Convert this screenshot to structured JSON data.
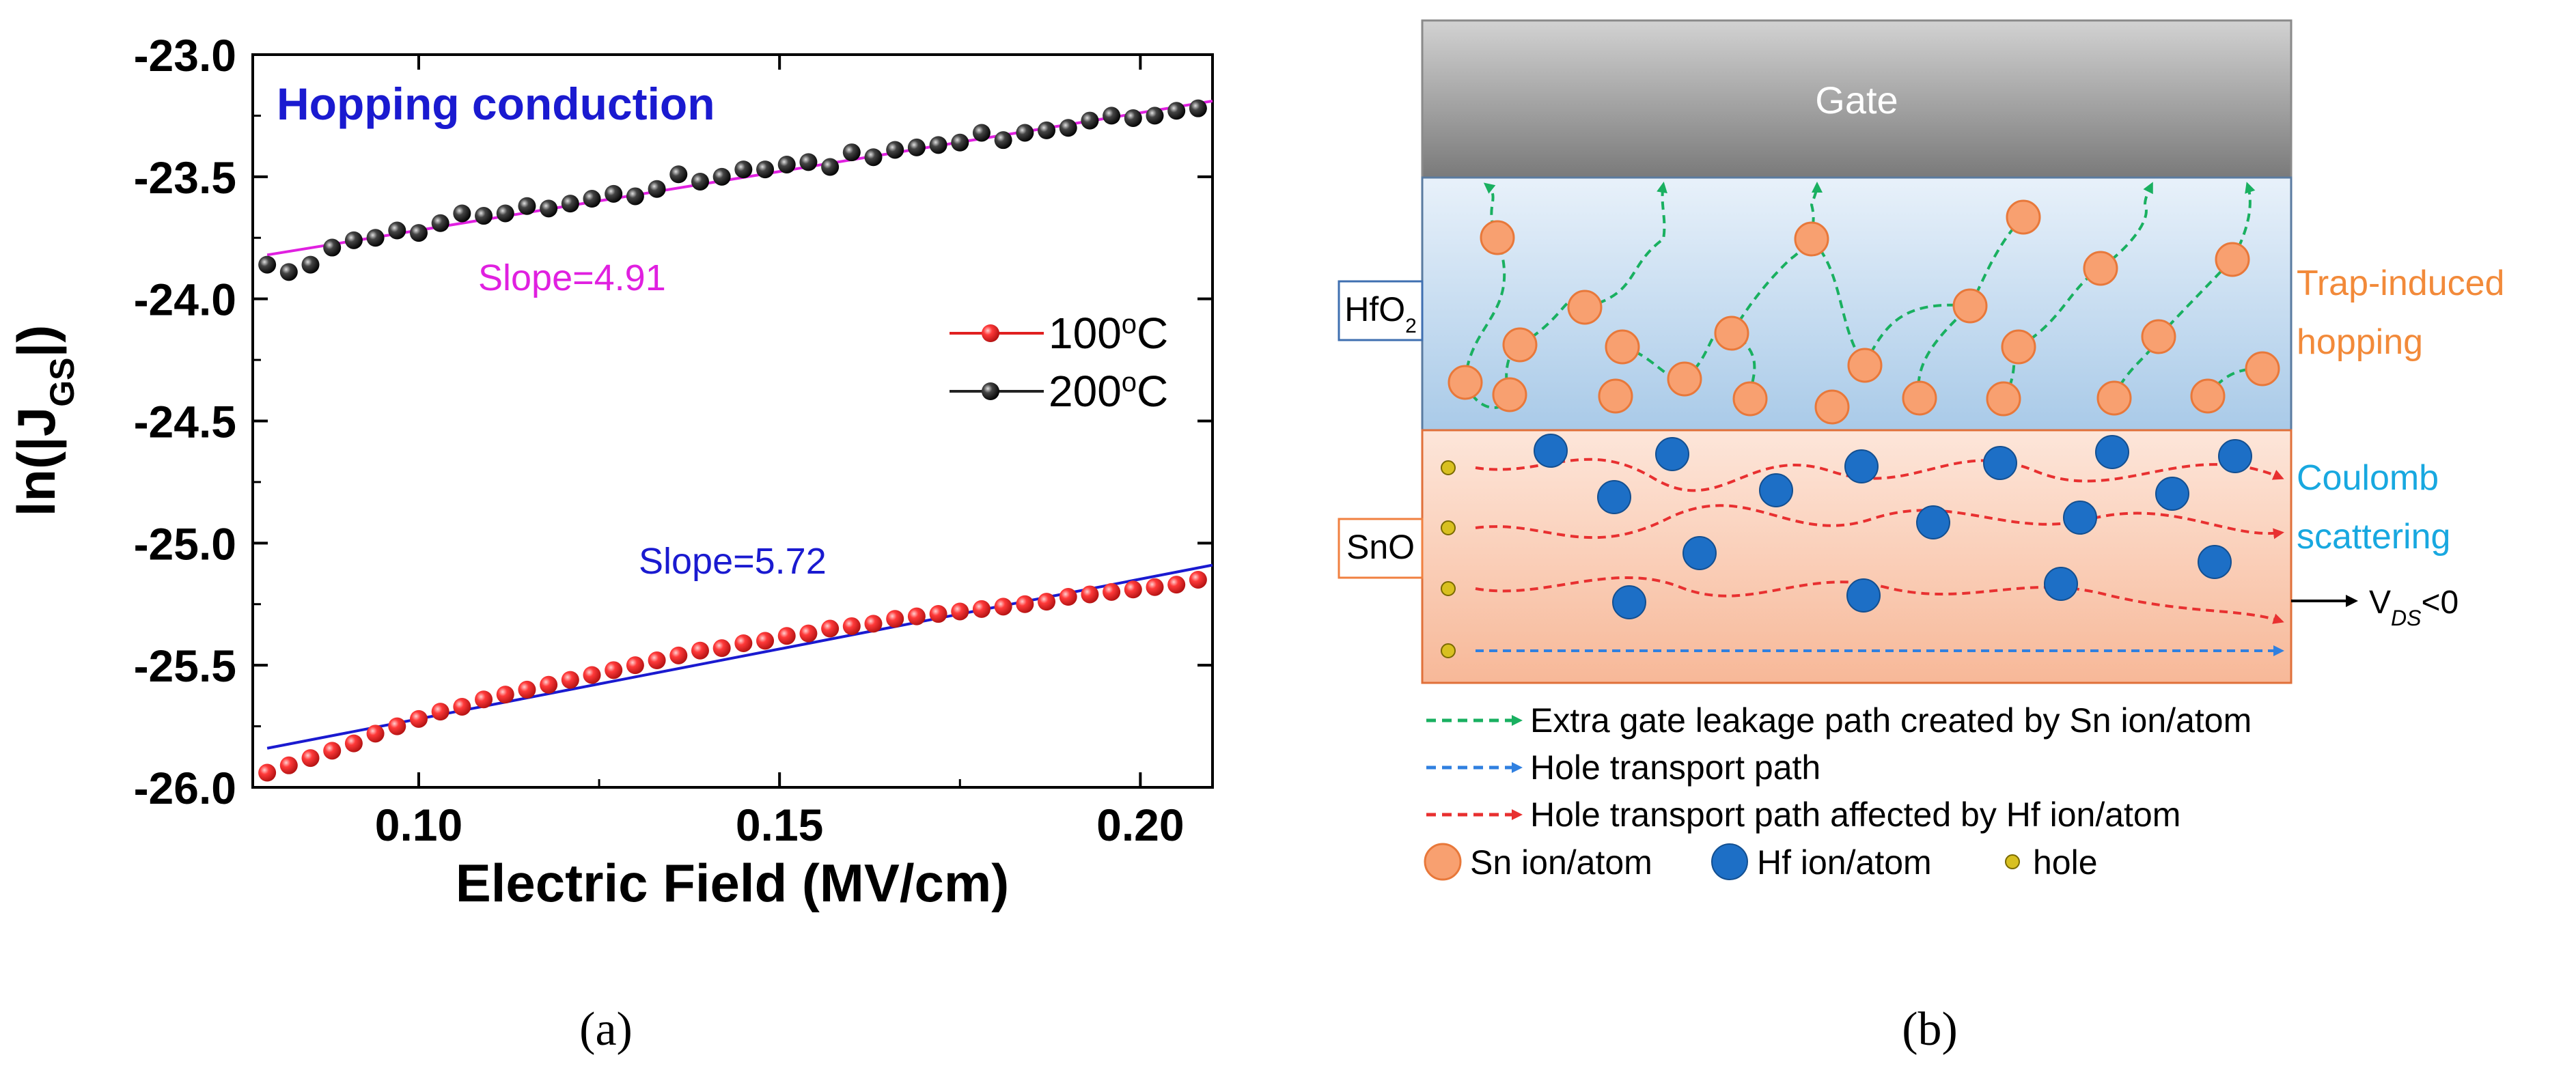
{
  "chart_data": [
    {
      "type": "scatter",
      "title": "Hopping conduction",
      "xlabel": "Electric Field (MV/cm)",
      "ylabel": "ln(|J",
      "ylabel_sub": "GS",
      "ylabel_end": "|)",
      "xlim": [
        0.077,
        0.21
      ],
      "ylim": [
        -26.0,
        -23.0
      ],
      "xticks": [
        0.1,
        0.15,
        0.2
      ],
      "xtick_labels": [
        "0.10",
        "0.15",
        "0.20"
      ],
      "yticks": [
        -23.0,
        -23.5,
        -24.0,
        -24.5,
        -25.0,
        -25.5,
        -26.0
      ],
      "ytick_labels": [
        "-23.0",
        "-23.5",
        "-24.0",
        "-24.5",
        "-25.0",
        "-25.5",
        "-26.0"
      ],
      "series": [
        {
          "name": "100°C",
          "legend_label": "100",
          "legend_sup": "o",
          "legend_unit": "C",
          "marker_color": "#e02020",
          "x": [
            0.079,
            0.082,
            0.085,
            0.088,
            0.091,
            0.094,
            0.097,
            0.1,
            0.103,
            0.106,
            0.109,
            0.112,
            0.115,
            0.118,
            0.121,
            0.124,
            0.127,
            0.13,
            0.133,
            0.136,
            0.139,
            0.142,
            0.145,
            0.148,
            0.151,
            0.154,
            0.157,
            0.16,
            0.163,
            0.166,
            0.169,
            0.172,
            0.175,
            0.178,
            0.181,
            0.184,
            0.187,
            0.19,
            0.193,
            0.196,
            0.199,
            0.202,
            0.205,
            0.208
          ],
          "y": [
            -25.94,
            -25.91,
            -25.88,
            -25.85,
            -25.82,
            -25.78,
            -25.75,
            -25.72,
            -25.69,
            -25.67,
            -25.64,
            -25.62,
            -25.6,
            -25.58,
            -25.56,
            -25.54,
            -25.52,
            -25.5,
            -25.48,
            -25.46,
            -25.44,
            -25.43,
            -25.41,
            -25.4,
            -25.38,
            -25.37,
            -25.35,
            -25.34,
            -25.33,
            -25.31,
            -25.3,
            -25.29,
            -25.28,
            -25.27,
            -25.26,
            -25.25,
            -25.24,
            -25.22,
            -25.21,
            -25.2,
            -25.19,
            -25.18,
            -25.17,
            -25.15
          ]
        },
        {
          "name": "200°C",
          "legend_label": "200",
          "legend_sup": "o",
          "legend_unit": "C",
          "marker_color": "#222222",
          "x": [
            0.079,
            0.082,
            0.085,
            0.088,
            0.091,
            0.094,
            0.097,
            0.1,
            0.103,
            0.106,
            0.109,
            0.112,
            0.115,
            0.118,
            0.121,
            0.124,
            0.127,
            0.13,
            0.133,
            0.136,
            0.139,
            0.142,
            0.145,
            0.148,
            0.151,
            0.154,
            0.157,
            0.16,
            0.163,
            0.166,
            0.169,
            0.172,
            0.175,
            0.178,
            0.181,
            0.184,
            0.187,
            0.19,
            0.193,
            0.196,
            0.199,
            0.202,
            0.205,
            0.208
          ],
          "y": [
            -23.86,
            -23.89,
            -23.86,
            -23.79,
            -23.76,
            -23.75,
            -23.72,
            -23.73,
            -23.69,
            -23.65,
            -23.66,
            -23.65,
            -23.62,
            -23.63,
            -23.61,
            -23.59,
            -23.57,
            -23.58,
            -23.55,
            -23.49,
            -23.52,
            -23.5,
            -23.47,
            -23.47,
            -23.45,
            -23.44,
            -23.46,
            -23.4,
            -23.42,
            -23.39,
            -23.38,
            -23.37,
            -23.36,
            -23.32,
            -23.35,
            -23.32,
            -23.31,
            -23.3,
            -23.27,
            -23.25,
            -23.26,
            -23.25,
            -23.23,
            -23.22
          ]
        }
      ],
      "fit_lines": [
        {
          "label": "Slope=4.91",
          "color": "#e020e0",
          "x": [
            0.079,
            0.21
          ],
          "y": [
            -23.82,
            -23.19
          ]
        },
        {
          "label": "Slope=5.72",
          "color": "#1a1ad0",
          "x": [
            0.079,
            0.21
          ],
          "y": [
            -25.84,
            -25.09
          ]
        }
      ],
      "title_color": "#1a1ad0",
      "panel_label": "(a)"
    },
    {
      "type": "diagram",
      "gate_label": "Gate",
      "hfo2_label": "HfO",
      "hfo2_sub": "2",
      "sno_label": "SnO",
      "trap_label_line1": "Trap-induced",
      "trap_label_line2": "hopping",
      "coulomb_label_line1": "Coulomb",
      "coulomb_label_line2": "scattering",
      "vds_label_v": "V",
      "vds_label_sub": "DS",
      "vds_label_rest": "<0",
      "legend": [
        {
          "text": "Extra gate leakage path created by Sn ion/atom",
          "color": "#19b060"
        },
        {
          "text": "Hole transport path",
          "color": "#3080e0"
        },
        {
          "text": "Hole transport path affected by Hf ion/atom",
          "color": "#e83030"
        }
      ],
      "symbol_legend": [
        {
          "text": "Sn ion/atom",
          "color": "#f8a070"
        },
        {
          "text": "Hf ion/atom",
          "color": "#1d6fc6"
        },
        {
          "text": "hole",
          "color": "#d8c020"
        }
      ],
      "panel_label": "(b)",
      "colors": {
        "sn": "#f8a070",
        "hf": "#1d6fc6",
        "hole": "#d8c020",
        "green": "#19b060",
        "blue": "#3080e0",
        "red": "#e83030",
        "orange_text": "#f28a3a",
        "cyan_text": "#18a8e0"
      }
    }
  ]
}
